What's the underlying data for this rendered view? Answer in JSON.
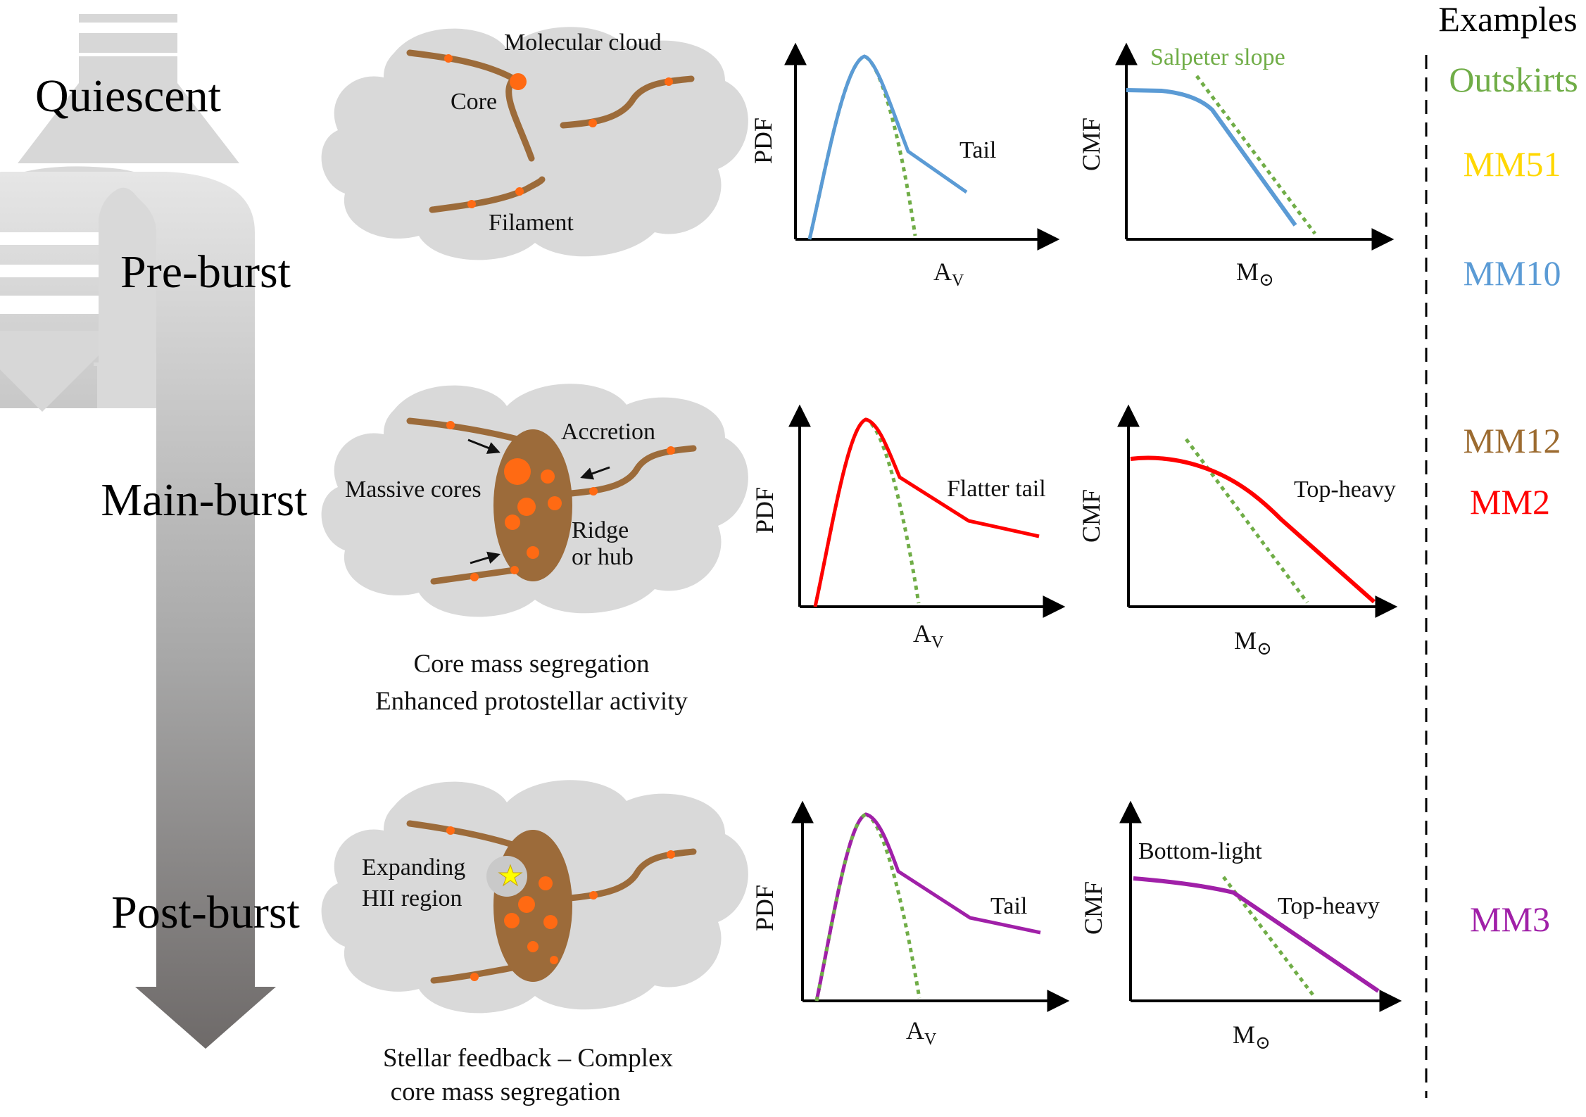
{
  "colors": {
    "outskirts": "#70ad47",
    "mm51": "#ffd700",
    "mm10": "#5b9bd5",
    "mm12": "#9c6b30",
    "mm2": "#ff0000",
    "mm3": "#a020a8",
    "salpeter": "#70ad47",
    "filament": "#9c6b3a",
    "core": "#ff6a13",
    "cloud": "#d9d9d9"
  },
  "stages": {
    "quiescent": "Quiescent",
    "pre_burst": "Pre-burst",
    "main_burst": "Main-burst",
    "post_burst": "Post-burst"
  },
  "panel1": {
    "molecular_cloud": "Molecular cloud",
    "core": "Core",
    "filament": "Filament"
  },
  "panel2": {
    "accretion": "Accretion",
    "massive_cores": "Massive cores",
    "ridge_line1": "Ridge",
    "ridge_line2": "or hub",
    "caption_line1": "Core mass segregation",
    "caption_line2": "Enhanced protostellar activity"
  },
  "panel3": {
    "hii_line1": "Expanding",
    "hii_line2": "HII region",
    "caption_line1": "Stellar feedback – Complex",
    "caption_line2": "core mass segregation"
  },
  "axes": {
    "pdf": "PDF",
    "cmf": "CMF",
    "av_main": "A",
    "av_sub": "V",
    "msun_main": "M",
    "msun_sub": "⊙"
  },
  "plots": {
    "pdf1_label": "Tail",
    "cmf1_label": "Salpeter slope",
    "pdf2_label": "Flatter tail",
    "cmf2_label": "Top-heavy",
    "pdf3_label": "Tail",
    "cmf3_label_bottom": "Bottom-light",
    "cmf3_label_top": "Top-heavy"
  },
  "examples": {
    "header": "Examples",
    "outskirts": "Outskirts",
    "mm51": "MM51",
    "mm10": "MM10",
    "mm12": "MM12",
    "mm2": "MM2",
    "mm3": "MM3"
  }
}
